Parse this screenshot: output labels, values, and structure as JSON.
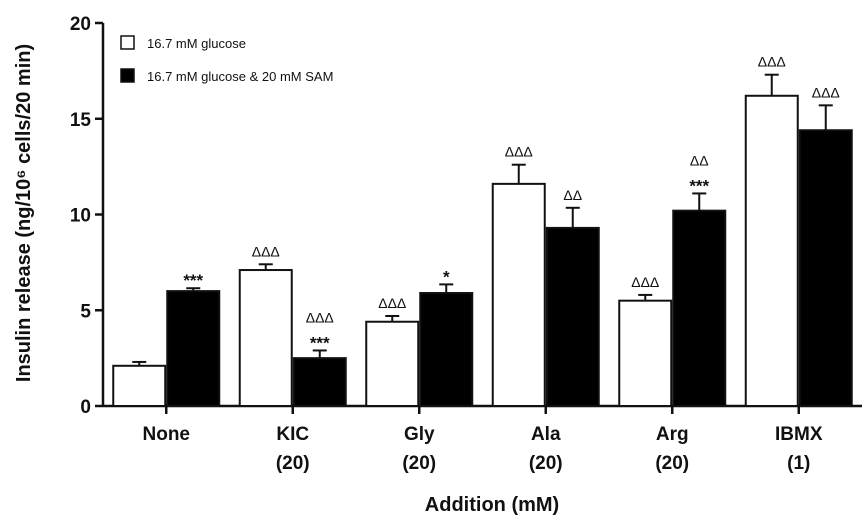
{
  "chart_data": {
    "type": "bar",
    "categories": [
      [
        "None",
        ""
      ],
      [
        "KIC",
        "(20)"
      ],
      [
        "Gly",
        "(20)"
      ],
      [
        "Ala",
        "(20)"
      ],
      [
        "Arg",
        "(20)"
      ],
      [
        "IBMX",
        "(1)"
      ]
    ],
    "series": [
      {
        "name": "16.7 mM glucose",
        "fill": "#ffffff",
        "values": [
          2.1,
          7.1,
          4.4,
          11.6,
          5.5,
          16.2
        ],
        "errors": [
          0.2,
          0.3,
          0.3,
          1.0,
          0.3,
          1.1
        ],
        "annotations": [
          [],
          [
            "ΔΔΔ"
          ],
          [
            "ΔΔΔ"
          ],
          [
            "ΔΔΔ"
          ],
          [
            "ΔΔΔ"
          ],
          [
            "ΔΔΔ"
          ]
        ]
      },
      {
        "name": "16.7 mM glucose & 20 mM SAM",
        "fill": "#000000",
        "values": [
          6.0,
          2.5,
          5.9,
          9.3,
          10.2,
          14.4
        ],
        "errors": [
          0.15,
          0.4,
          0.45,
          1.05,
          0.9,
          1.3
        ],
        "annotations": [
          [
            "***"
          ],
          [
            "ΔΔΔ",
            "***"
          ],
          [
            "*"
          ],
          [
            "ΔΔ"
          ],
          [
            "ΔΔ",
            "***"
          ],
          [
            "ΔΔΔ"
          ]
        ]
      }
    ],
    "ylabel": "Insulin release (ng/10⁶ cells/20 min)",
    "xlabel": "Addition (mM)",
    "ylim": [
      0,
      20
    ],
    "yticks": [
      0,
      5,
      10,
      15,
      20
    ],
    "legend": "top-left",
    "grid": false
  }
}
